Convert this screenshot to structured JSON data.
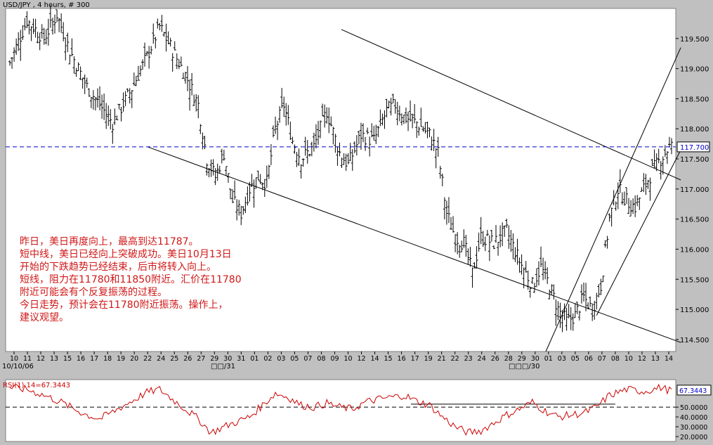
{
  "window_title": "USD/JPY , 4 hours, # 300",
  "commentary": [
    "昨日，美日再度向上，最高到达11787。",
    "短中线，美日已经向上突破成功。美日10月13日",
    "开始的下跌趋势已经结束，后市将转入向上。",
    "短线，阻力在11780和11850附近。汇价在11780",
    "附近可能会有个反复振荡的过程。",
    "今日走势，预计会在11780附近振荡。操作上，",
    "建议观望。"
  ],
  "colors": {
    "background": "#c0c0c0",
    "plot_background": "#ffffff",
    "price_bars": "#000000",
    "reference_line": "#0000cc",
    "rsi_line": "#cc0000",
    "commentary_text": "#d01818"
  },
  "chart_data": [
    {
      "type": "ohlc",
      "title": "USD/JPY , 4 hours, # 300",
      "ylim": [
        114.3,
        120.0
      ],
      "y_ticks": [
        "114.500",
        "115.000",
        "115.500",
        "116.000",
        "116.500",
        "117.000",
        "117.500",
        "118.000",
        "118.500",
        "119.000",
        "119.500"
      ],
      "x_tick_labels": [
        "10",
        "11",
        "12",
        "13",
        "15",
        "16",
        "17",
        "18",
        "19",
        "20",
        "22",
        "24",
        "25",
        "26",
        "27",
        "29",
        "30",
        "31",
        "01",
        "02",
        "03",
        "05",
        "07",
        "08",
        "09",
        "10",
        "12",
        "14",
        "15",
        "16",
        "17",
        "19",
        "21",
        "22",
        "23",
        "24",
        "26",
        "28",
        "29",
        "30",
        "01",
        "03",
        "05",
        "06",
        "07",
        "08",
        "10",
        "12",
        "13",
        "14"
      ],
      "x_period_labels": [
        "10/10/06",
        "□□/31",
        "□□□/30"
      ],
      "reference_line": {
        "value": 117.7,
        "label": "117.700",
        "style": "dashed"
      },
      "price_path": [
        [
          0,
          119.1
        ],
        [
          8,
          119.8
        ],
        [
          16,
          119.5
        ],
        [
          22,
          119.9
        ],
        [
          28,
          119.3
        ],
        [
          36,
          118.7
        ],
        [
          42,
          118.4
        ],
        [
          48,
          118.1
        ],
        [
          56,
          118.6
        ],
        [
          64,
          119.2
        ],
        [
          70,
          119.7
        ],
        [
          76,
          119.3
        ],
        [
          82,
          118.9
        ],
        [
          88,
          118.4
        ],
        [
          92,
          117.5
        ],
        [
          96,
          117.2
        ],
        [
          100,
          117.6
        ],
        [
          104,
          116.8
        ],
        [
          108,
          116.6
        ],
        [
          112,
          117.0
        ],
        [
          116,
          117.2
        ],
        [
          120,
          117.1
        ],
        [
          124,
          118.0
        ],
        [
          128,
          118.4
        ],
        [
          132,
          117.8
        ],
        [
          136,
          117.5
        ],
        [
          142,
          117.7
        ],
        [
          148,
          118.3
        ],
        [
          154,
          117.6
        ],
        [
          158,
          117.4
        ],
        [
          164,
          117.9
        ],
        [
          170,
          117.8
        ],
        [
          176,
          118.3
        ],
        [
          180,
          118.4
        ],
        [
          184,
          118.2
        ],
        [
          190,
          118.1
        ],
        [
          196,
          117.9
        ],
        [
          200,
          117.6
        ],
        [
          204,
          116.6
        ],
        [
          208,
          116.2
        ],
        [
          212,
          116.1
        ],
        [
          216,
          115.6
        ],
        [
          220,
          116.2
        ],
        [
          226,
          116.1
        ],
        [
          232,
          116.3
        ],
        [
          238,
          115.8
        ],
        [
          244,
          115.4
        ],
        [
          248,
          115.7
        ],
        [
          252,
          115.4
        ],
        [
          256,
          115.0
        ],
        [
          260,
          114.8
        ],
        [
          264,
          114.9
        ],
        [
          268,
          115.2
        ],
        [
          272,
          115.0
        ],
        [
          276,
          115.4
        ],
        [
          280,
          116.5
        ],
        [
          284,
          117.0
        ],
        [
          288,
          116.8
        ],
        [
          292,
          116.7
        ],
        [
          296,
          117.0
        ],
        [
          300,
          117.3
        ],
        [
          304,
          117.5
        ],
        [
          308,
          117.7
        ]
      ],
      "trendlines": [
        {
          "name": "upper-channel",
          "from": [
            24.5,
            119.65
          ],
          "to": [
            49.9,
            117.15
          ]
        },
        {
          "name": "lower-channel",
          "from": [
            10,
            117.7
          ],
          "to": [
            49.9,
            114.45
          ]
        },
        {
          "name": "rising-channel-top",
          "from": [
            39.8,
            114.3
          ],
          "to": [
            49.9,
            119.35
          ]
        },
        {
          "name": "rising-channel-bottom",
          "from": [
            43.6,
            114.9
          ],
          "to": [
            49.9,
            117.65
          ]
        }
      ]
    },
    {
      "type": "line",
      "title": "RSI(1) 14=67.3443",
      "ylim": [
        15,
        78
      ],
      "y_ticks": [
        "20.0000",
        "30.0000",
        "40.0000",
        "50.0000"
      ],
      "current_value": 67.3443,
      "current_label": "67.3443",
      "reference_line": {
        "value": 50,
        "style": "dashed"
      },
      "rsi_path": [
        [
          0,
          70
        ],
        [
          8,
          68
        ],
        [
          16,
          62
        ],
        [
          24,
          55
        ],
        [
          30,
          48
        ],
        [
          36,
          42
        ],
        [
          42,
          38
        ],
        [
          48,
          45
        ],
        [
          56,
          55
        ],
        [
          64,
          65
        ],
        [
          70,
          68
        ],
        [
          76,
          58
        ],
        [
          82,
          48
        ],
        [
          88,
          38
        ],
        [
          94,
          24
        ],
        [
          100,
          30
        ],
        [
          106,
          35
        ],
        [
          112,
          40
        ],
        [
          118,
          52
        ],
        [
          124,
          64
        ],
        [
          130,
          60
        ],
        [
          136,
          52
        ],
        [
          142,
          50
        ],
        [
          148,
          54
        ],
        [
          154,
          50
        ],
        [
          160,
          48
        ],
        [
          166,
          55
        ],
        [
          172,
          58
        ],
        [
          178,
          60
        ],
        [
          184,
          62
        ],
        [
          190,
          56
        ],
        [
          196,
          52
        ],
        [
          202,
          40
        ],
        [
          208,
          30
        ],
        [
          214,
          24
        ],
        [
          220,
          26
        ],
        [
          226,
          34
        ],
        [
          232,
          42
        ],
        [
          238,
          48
        ],
        [
          244,
          55
        ],
        [
          250,
          46
        ],
        [
          256,
          40
        ],
        [
          262,
          42
        ],
        [
          268,
          44
        ],
        [
          274,
          50
        ],
        [
          280,
          62
        ],
        [
          288,
          68
        ],
        [
          296,
          66
        ],
        [
          304,
          70
        ],
        [
          308,
          67
        ]
      ],
      "resistance_line": {
        "from": [
          29.7,
          53
        ],
        "to": [
          45.0,
          53
        ]
      }
    }
  ]
}
